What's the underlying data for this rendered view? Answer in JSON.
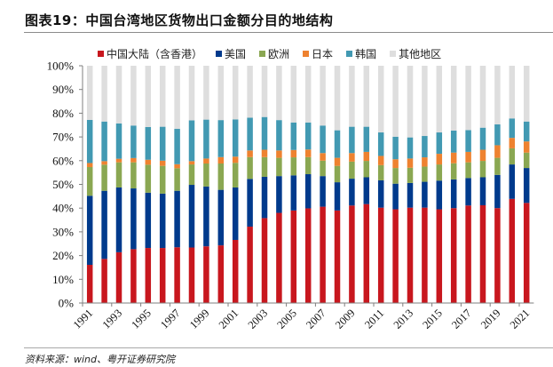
{
  "title": "图表19：中国台湾地区货物出口金额分目的地结构",
  "source": "资料来源：wind、粤开证券研究院",
  "chart_data": {
    "type": "bar",
    "stacked": true,
    "title": "图表19：中国台湾地区货物出口金额分目的地结构",
    "xlabel": "",
    "ylabel": "",
    "ylim": [
      0,
      100
    ],
    "y_unit": "%",
    "y_ticks": [
      "0%",
      "10%",
      "20%",
      "30%",
      "40%",
      "50%",
      "60%",
      "70%",
      "80%",
      "90%",
      "100%"
    ],
    "x_tick_labels": [
      "1991",
      "1993",
      "1995",
      "1997",
      "1999",
      "2001",
      "2003",
      "2005",
      "2007",
      "2009",
      "2011",
      "2013",
      "2015",
      "2017",
      "2019",
      "2021"
    ],
    "legend_position": "top",
    "grid": false,
    "categories": [
      "1991",
      "1992",
      "1993",
      "1994",
      "1995",
      "1996",
      "1997",
      "1998",
      "1999",
      "2000",
      "2001",
      "2002",
      "2003",
      "2004",
      "2005",
      "2006",
      "2007",
      "2008",
      "2009",
      "2010",
      "2011",
      "2012",
      "2013",
      "2014",
      "2015",
      "2016",
      "2017",
      "2018",
      "2019",
      "2020",
      "2021"
    ],
    "series": [
      {
        "name": "中国大陆（含香港）",
        "color": "#c8171e",
        "values": [
          16.1,
          18.6,
          21.4,
          22.7,
          23.2,
          23.2,
          23.5,
          23.4,
          23.9,
          24.3,
          26.6,
          32.2,
          35.8,
          38.0,
          39.0,
          39.9,
          40.6,
          39.0,
          41.1,
          41.7,
          40.2,
          39.5,
          40.2,
          40.2,
          39.5,
          40.0,
          41.1,
          41.2,
          40.0,
          43.9,
          42.2
        ]
      },
      {
        "name": "美国",
        "color": "#003a8c",
        "values": [
          29.1,
          28.7,
          27.3,
          25.6,
          23.3,
          22.9,
          23.8,
          26.4,
          25.2,
          23.4,
          22.1,
          20.1,
          17.4,
          15.5,
          14.8,
          14.4,
          12.9,
          11.9,
          11.3,
          11.3,
          11.5,
          10.8,
          10.4,
          10.9,
          12.1,
          12.1,
          11.6,
          11.8,
          14.0,
          14.5,
          14.7
        ]
      },
      {
        "name": "欧洲",
        "color": "#8aa752",
        "values": [
          12.1,
          11.0,
          10.6,
          11.0,
          11.8,
          11.7,
          9.5,
          8.6,
          9.7,
          11.1,
          10.4,
          9.2,
          8.3,
          7.7,
          7.6,
          7.2,
          6.5,
          6.9,
          7.2,
          6.9,
          6.4,
          6.6,
          6.4,
          6.4,
          6.8,
          6.8,
          6.6,
          6.9,
          7.2,
          6.8,
          6.5
        ]
      },
      {
        "name": "日本",
        "color": "#ee8230",
        "values": [
          1.7,
          1.5,
          1.5,
          1.8,
          2.1,
          2.2,
          1.7,
          1.4,
          2.1,
          2.7,
          2.6,
          2.8,
          3.1,
          3.1,
          3.1,
          3.2,
          3.2,
          3.4,
          3.6,
          3.8,
          3.9,
          3.7,
          3.9,
          3.9,
          4.5,
          4.5,
          4.4,
          4.7,
          5.3,
          4.4,
          4.7
        ]
      },
      {
        "name": "韩国",
        "color": "#4299b2",
        "values": [
          18.2,
          16.7,
          14.9,
          13.7,
          13.8,
          14.3,
          14.9,
          17.2,
          16.4,
          15.6,
          15.7,
          13.8,
          13.8,
          12.8,
          11.6,
          11.4,
          11.6,
          11.6,
          11.1,
          10.6,
          9.9,
          9.5,
          8.9,
          9.0,
          9.0,
          9.3,
          9.2,
          9.3,
          8.8,
          8.2,
          8.4
        ]
      },
      {
        "name": "其他地区",
        "color": "#dedede",
        "values": [
          22.8,
          23.5,
          24.3,
          25.2,
          25.8,
          25.7,
          26.6,
          23.0,
          22.7,
          22.9,
          22.6,
          21.9,
          21.6,
          22.9,
          23.9,
          23.9,
          25.2,
          27.2,
          25.7,
          25.7,
          28.1,
          29.9,
          30.2,
          29.6,
          28.1,
          27.3,
          27.1,
          26.1,
          24.7,
          22.2,
          23.5
        ]
      }
    ]
  }
}
